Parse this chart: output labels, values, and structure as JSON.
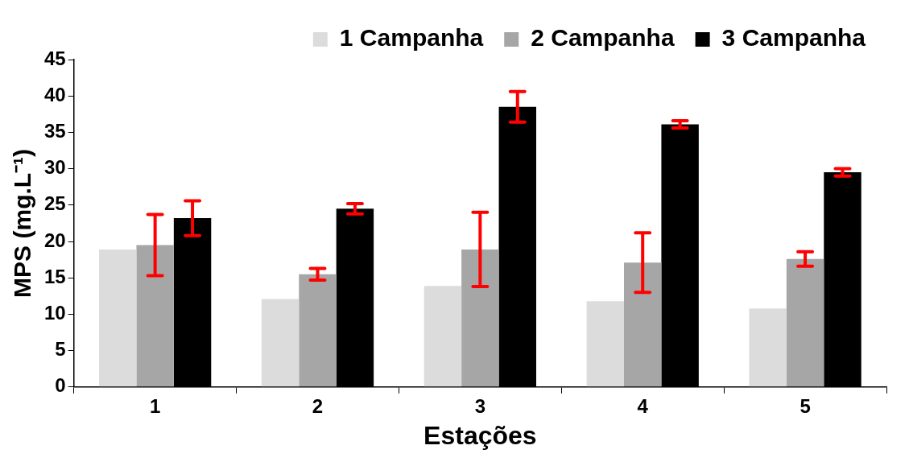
{
  "chart_data": {
    "type": "bar",
    "xlabel": "Estações",
    "ylabel": "MPS (mg.L⁻¹)",
    "categories": [
      "1",
      "2",
      "3",
      "4",
      "5"
    ],
    "series": [
      {
        "name": "1 Campanha",
        "color": "#dcdcdc",
        "values": [
          18.9,
          12.1,
          13.9,
          11.8,
          10.8
        ]
      },
      {
        "name": "2 Campanha",
        "color": "#a6a6a6",
        "values": [
          19.5,
          15.5,
          18.9,
          17.1,
          17.6
        ],
        "errors": [
          4.2,
          0.8,
          5.1,
          4.1,
          1
        ]
      },
      {
        "name": "3 Campanha",
        "color": "#000000",
        "values": [
          23.2,
          24.5,
          38.5,
          36.1,
          29.5
        ],
        "errors": [
          2.4,
          0.7,
          2.1,
          0.5,
          0.5
        ]
      }
    ],
    "ylim": [
      0,
      45
    ],
    "yticks": [
      0,
      5,
      10,
      15,
      20,
      25,
      30,
      35,
      40,
      45
    ],
    "grid": false,
    "legend": "top right"
  }
}
